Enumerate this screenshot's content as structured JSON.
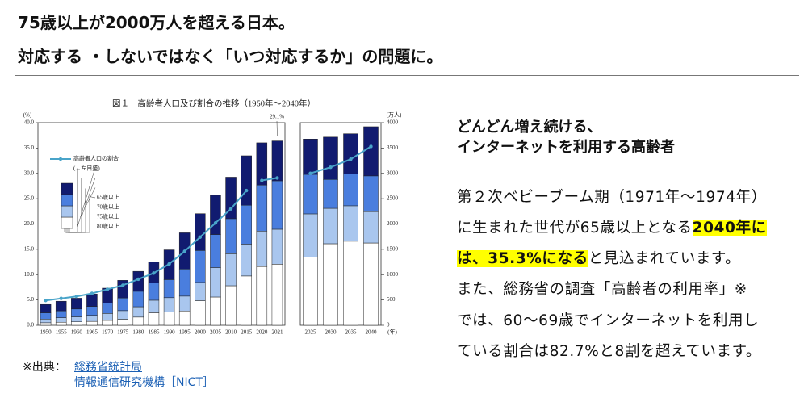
{
  "header": {
    "title": [
      "75歳以上が2000万人を超える日本。",
      "対応する ・しないではなく「いつ対応するか」の問題に。"
    ]
  },
  "chart_data": {
    "type": "bar",
    "title": "図１　高齢者人口及び割合の推移（1950年～2040年）",
    "y_label": "(%)",
    "y2_label": "(万人)",
    "x_label": "(年)",
    "categories": [
      "1950",
      "1955",
      "1960",
      "1965",
      "1970",
      "1975",
      "1980",
      "1985",
      "1990",
      "1995",
      "2000",
      "2005",
      "2010",
      "2015",
      "2020",
      "2021",
      "2025",
      "2030",
      "2035",
      "2040"
    ],
    "series": [
      {
        "name": "80歳以上",
        "color": "#ffffff",
        "axis": "y2",
        "values": [
          50,
          60,
          68,
          77,
          97,
          119,
          162,
          247,
          263,
          283,
          486,
          558,
          781,
          974,
          1160,
          1206,
          1350,
          1610,
          1660,
          1625
        ]
      },
      {
        "name": "75歳以上",
        "color": "#a9c6ee",
        "axis": "y2",
        "values": [
          73,
          90,
          99,
          119,
          137,
          170,
          204,
          248,
          282,
          293,
          360,
          582,
          632,
          629,
          700,
          691,
          850,
          700,
          700,
          620
        ]
      },
      {
        "name": "70歳以上",
        "color": "#4a7ede",
        "axis": "y2",
        "values": [
          123,
          135,
          155,
          176,
          204,
          251,
          305,
          340,
          357,
          535,
          631,
          652,
          692,
          768,
          910,
          956,
          780,
          570,
          630,
          705
        ]
      },
      {
        "name": "65歳以上",
        "color": "#111b70",
        "axis": "y2",
        "values": [
          165,
          190,
          213,
          246,
          295,
          347,
          394,
          412,
          587,
          715,
          727,
          775,
          820,
          976,
          833,
          787,
          697,
          836,
          792,
          971
        ]
      },
      {
        "name": "高齢者人口の割合",
        "type": "line",
        "color": "#49a4c9",
        "values": [
          4.9,
          5.3,
          5.7,
          6.3,
          7.1,
          7.9,
          9.1,
          10.3,
          12.1,
          14.6,
          17.4,
          20.2,
          23.0,
          26.6,
          28.6,
          29.1,
          30.0,
          31.2,
          32.8,
          35.3
        ]
      }
    ],
    "line_note": "(←左目盛)",
    "annotation": "29.1%",
    "ylim": [
      0,
      40
    ],
    "yticks": [
      {
        "value": 0,
        "label": "0.0"
      },
      {
        "value": 5,
        "label": "5.0"
      },
      {
        "value": 10,
        "label": "10.0"
      },
      {
        "value": 15,
        "label": "15.0"
      },
      {
        "value": 20,
        "label": "20.0"
      },
      {
        "value": 25,
        "label": "25.0"
      },
      {
        "value": 30,
        "label": "30.0"
      },
      {
        "value": 35,
        "label": "35.0"
      },
      {
        "value": 40,
        "label": "40.0"
      }
    ],
    "y2lim": [
      0,
      4000
    ],
    "y2ticks": [
      0,
      500,
      1000,
      1500,
      2000,
      2500,
      3000,
      3500,
      4000
    ]
  },
  "section": {
    "heading": [
      "どんどん増え続ける、",
      "インターネットを利用する高齢者"
    ],
    "body": [
      [
        "第２次ベビーブーム期（1971年～1974年）"
      ],
      [
        "に生まれた世代が65歳以上となる",
        "2040年に"
      ],
      [
        "は、35.3%になる",
        "と見込まれています。"
      ],
      [
        "また、総務省の調査「高齢者の利用率」※"
      ],
      [
        "では、60～69歳でインターネットを利用し"
      ],
      [
        "ている割合は82.7%と8割を超えています。"
      ]
    ]
  },
  "source": {
    "label": "※出典：",
    "links": [
      "総務省統計局",
      "情報通信研究機構［NICT］"
    ]
  }
}
